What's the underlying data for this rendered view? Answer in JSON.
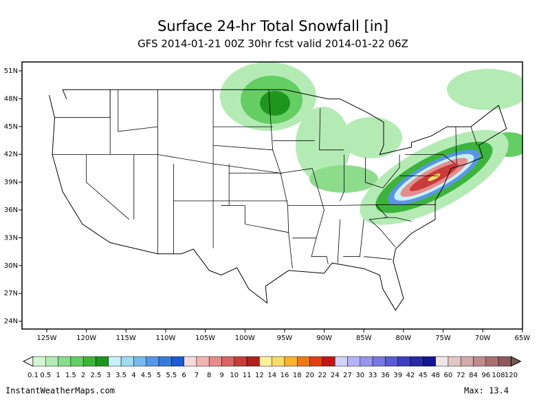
{
  "header": {
    "title": "Surface 24-hr Total Snowfall [in]",
    "subtitle": "GFS 2014-01-21 00Z 30hr fcst valid 2014-01-22 06Z"
  },
  "map": {
    "lat_labels": [
      "51N",
      "48N",
      "45N",
      "42N",
      "39N",
      "36N",
      "33N",
      "30N",
      "27N",
      "24N"
    ],
    "lon_labels": [
      "125W",
      "120W",
      "115W",
      "110W",
      "105W",
      "100W",
      "95W",
      "90W",
      "85W",
      "80W",
      "75W",
      "70W",
      "65W"
    ]
  },
  "colorbar": {
    "labels": [
      "0.1",
      "0.5",
      "1",
      "1.5",
      "2",
      "2.5",
      "3",
      "3.5",
      "4",
      "4.5",
      "5",
      "5.5",
      "6",
      "7",
      "8",
      "9",
      "10",
      "11",
      "12",
      "14",
      "16",
      "18",
      "20",
      "22",
      "24",
      "27",
      "30",
      "33",
      "36",
      "39",
      "42",
      "45",
      "48",
      "60",
      "72",
      "84",
      "96",
      "108",
      "120"
    ],
    "colors": [
      "#d2f5d2",
      "#b4ebb4",
      "#8cdc8c",
      "#64cd64",
      "#3cb43c",
      "#1e961e",
      "#c8f0f5",
      "#a0dcf0",
      "#78b9eb",
      "#5a96e6",
      "#3c78dc",
      "#1e5ad2",
      "#f5dcdc",
      "#f0b4b4",
      "#e68c8c",
      "#dc6464",
      "#c83c3c",
      "#b41e1e",
      "#fff0a0",
      "#fadc64",
      "#fab428",
      "#f07814",
      "#e63c14",
      "#c81414",
      "#d2d2fa",
      "#b4b4f5",
      "#9696eb",
      "#7878e1",
      "#5a5ad2",
      "#3c3cc3",
      "#2828aa",
      "#141496",
      "#f0e6e6",
      "#e1c8c8",
      "#d2aaaa",
      "#be8c8c",
      "#a87070",
      "#8c5a5a"
    ]
  },
  "footer": {
    "site": "InstantWeatherMaps.com",
    "max": "Max:  13.4"
  }
}
